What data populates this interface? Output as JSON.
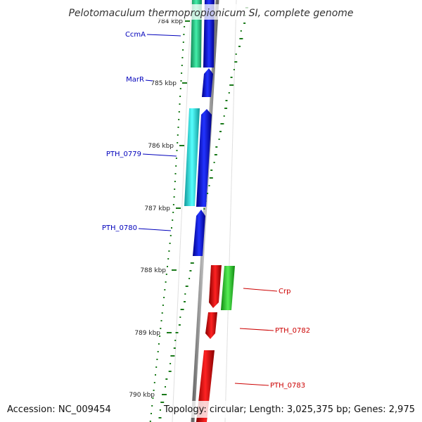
{
  "title": "Pelotomaculum thermopropionicum SI, complete genome",
  "footer": {
    "accession": "Accession: NC_009454",
    "topology": "Topology: circular; Length: 3,025,375 bp; Genes: 2,975"
  },
  "ticks": [
    "784 kbp",
    "785 kbp",
    "786 kbp",
    "787 kbp",
    "788 kbp",
    "789 kbp",
    "790 kbp"
  ],
  "labels": {
    "ccma": "CcmA",
    "marr": "MarR",
    "pth0779": "PTH_0779",
    "pth0780": "PTH_0780",
    "crp": "Crp",
    "pth0782": "PTH_0782",
    "pth0783": "PTH_0783"
  },
  "colors": {
    "forward_cds": "#0000dd",
    "reverse_cds": "#dd0000",
    "cog_teal": "#22cc88",
    "cog_cyan": "#22dddd",
    "cog_green": "#33cc33",
    "backbone": "#999999",
    "gc_dots": "#1a7a1a",
    "label_blue": "#0000bb",
    "label_red": "#cc0000"
  }
}
